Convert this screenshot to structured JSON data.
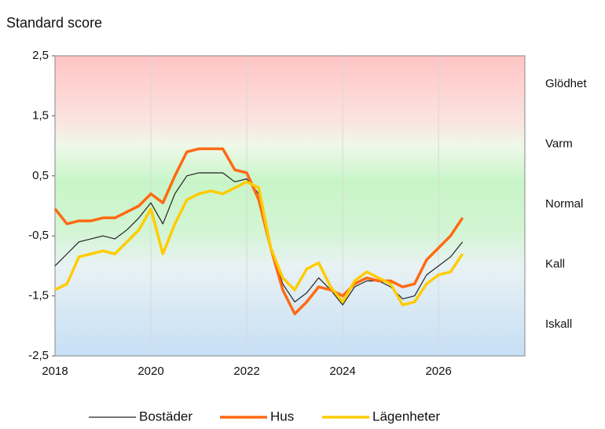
{
  "chart_data": {
    "type": "line",
    "y_axis_title": "Standard score",
    "x": [
      2018.0,
      2018.25,
      2018.5,
      2018.75,
      2019.0,
      2019.25,
      2019.5,
      2019.75,
      2020.0,
      2020.25,
      2020.5,
      2020.75,
      2021.0,
      2021.25,
      2021.5,
      2021.75,
      2022.0,
      2022.25,
      2022.5,
      2022.75,
      2023.0,
      2023.25,
      2023.5,
      2023.75,
      2024.0,
      2024.25,
      2024.5,
      2024.75,
      2025.0,
      2025.25,
      2025.5,
      2025.75,
      2026.0,
      2026.25,
      2026.5
    ],
    "series": [
      {
        "name": "Bostäder",
        "color": "#222222",
        "width": 1.2,
        "values": [
          -1.0,
          -0.8,
          -0.6,
          -0.55,
          -0.5,
          -0.55,
          -0.4,
          -0.2,
          0.05,
          -0.3,
          0.2,
          0.5,
          0.55,
          0.55,
          0.55,
          0.4,
          0.45,
          0.2,
          -0.65,
          -1.3,
          -1.6,
          -1.45,
          -1.2,
          -1.4,
          -1.65,
          -1.35,
          -1.25,
          -1.25,
          -1.35,
          -1.55,
          -1.5,
          -1.15,
          -1.0,
          -0.85,
          -0.6
        ]
      },
      {
        "name": "Hus",
        "color": "#ff6a13",
        "width": 3.5,
        "values": [
          -0.05,
          -0.3,
          -0.25,
          -0.25,
          -0.2,
          -0.2,
          -0.1,
          0.0,
          0.2,
          0.05,
          0.5,
          0.9,
          0.95,
          0.95,
          0.95,
          0.6,
          0.55,
          0.1,
          -0.7,
          -1.4,
          -1.8,
          -1.6,
          -1.35,
          -1.4,
          -1.5,
          -1.3,
          -1.2,
          -1.25,
          -1.25,
          -1.35,
          -1.3,
          -0.9,
          -0.7,
          -0.5,
          -0.2
        ]
      },
      {
        "name": "Lägenheter",
        "color": "#ffcc00",
        "width": 3.5,
        "values": [
          -1.4,
          -1.3,
          -0.85,
          -0.8,
          -0.75,
          -0.8,
          -0.6,
          -0.4,
          -0.05,
          -0.8,
          -0.3,
          0.1,
          0.2,
          0.25,
          0.2,
          0.3,
          0.4,
          0.3,
          -0.7,
          -1.2,
          -1.4,
          -1.05,
          -0.95,
          -1.35,
          -1.6,
          -1.25,
          -1.1,
          -1.2,
          -1.3,
          -1.65,
          -1.6,
          -1.3,
          -1.15,
          -1.1,
          -0.8
        ]
      }
    ],
    "xlim": [
      2018,
      2027.8
    ],
    "xticks": [
      2018,
      2020,
      2022,
      2024,
      2026
    ],
    "ylim": [
      -2.5,
      2.5
    ],
    "yticks": [
      {
        "value": -2.5,
        "label": "-2,5"
      },
      {
        "value": -1.5,
        "label": "-1,5"
      },
      {
        "value": -0.5,
        "label": "-0,5"
      },
      {
        "value": 0.5,
        "label": "0,5"
      },
      {
        "value": 1.5,
        "label": "1,5"
      },
      {
        "value": 2.5,
        "label": "2,5"
      }
    ],
    "zone_labels": [
      "Glödhet",
      "Varm",
      "Normal",
      "Kall",
      "Iskall"
    ],
    "grid": "x",
    "legend": "bottom"
  }
}
